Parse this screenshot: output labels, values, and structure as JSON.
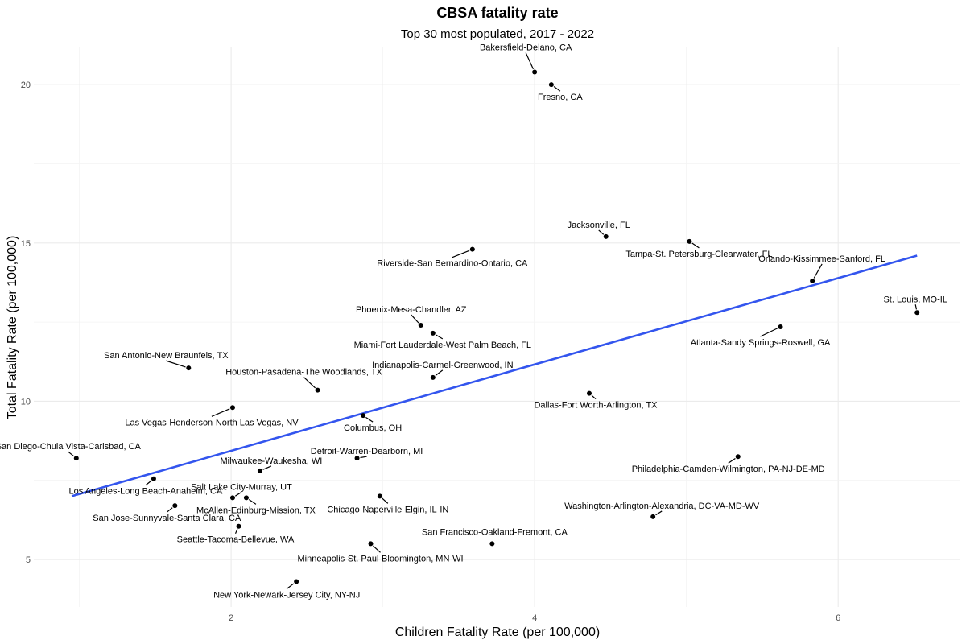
{
  "chart_data": {
    "type": "scatter",
    "title": "CBSA fatality rate",
    "subtitle": "Top 30 most populated, 2017 - 2022",
    "xlabel": "Children Fatality Rate (per 100,000)",
    "ylabel": "Total Fatality Rate (per 100,000)",
    "xlim": [
      0.7,
      6.8
    ],
    "ylim": [
      3.5,
      21.2
    ],
    "x_ticks": [
      2,
      4,
      6
    ],
    "y_ticks": [
      5,
      10,
      15,
      20
    ],
    "grid": true,
    "trend_line": {
      "color": "#3355ee",
      "x": [
        0.95,
        6.52
      ],
      "y": [
        7.0,
        14.6
      ]
    },
    "points": [
      {
        "name": "Bakersfield-Delano, CA",
        "x": 4.0,
        "y": 20.4
      },
      {
        "name": "Fresno, CA",
        "x": 4.11,
        "y": 20.0
      },
      {
        "name": "Jacksonville, FL",
        "x": 4.47,
        "y": 15.2
      },
      {
        "name": "Tampa-St. Petersburg-Clearwater, FL",
        "x": 5.02,
        "y": 15.05
      },
      {
        "name": "Riverside-San Bernardino-Ontario, CA",
        "x": 3.59,
        "y": 14.8
      },
      {
        "name": "Orlando-Kissimmee-Sanford, FL",
        "x": 5.83,
        "y": 13.8
      },
      {
        "name": "St. Louis, MO-IL",
        "x": 6.52,
        "y": 12.8
      },
      {
        "name": "Atlanta-Sandy Springs-Roswell, GA",
        "x": 5.62,
        "y": 12.35
      },
      {
        "name": "Phoenix-Mesa-Chandler, AZ",
        "x": 3.25,
        "y": 12.4
      },
      {
        "name": "Miami-Fort Lauderdale-West Palm Beach, FL",
        "x": 3.33,
        "y": 12.15
      },
      {
        "name": "San Antonio-New Braunfels, TX",
        "x": 1.72,
        "y": 11.05
      },
      {
        "name": "Indianapolis-Carmel-Greenwood, IN",
        "x": 3.33,
        "y": 10.75
      },
      {
        "name": "Houston-Pasadena-The Woodlands, TX",
        "x": 2.57,
        "y": 10.35
      },
      {
        "name": "Dallas-Fort Worth-Arlington, TX",
        "x": 4.36,
        "y": 10.25
      },
      {
        "name": "Las Vegas-Henderson-North Las Vegas, NV",
        "x": 2.01,
        "y": 9.8
      },
      {
        "name": "Columbus, OH",
        "x": 2.87,
        "y": 9.55
      },
      {
        "name": "San Diego-Chula Vista-Carlsbad, CA",
        "x": 0.98,
        "y": 8.2
      },
      {
        "name": "Detroit-Warren-Dearborn, MI",
        "x": 2.83,
        "y": 8.2
      },
      {
        "name": "Philadelphia-Camden-Wilmington, PA-NJ-DE-MD",
        "x": 5.34,
        "y": 8.25
      },
      {
        "name": "Milwaukee-Waukesha, WI",
        "x": 2.19,
        "y": 7.8
      },
      {
        "name": "Los Angeles-Long Beach-Anaheim, CA",
        "x": 1.49,
        "y": 7.55
      },
      {
        "name": "Salt Lake City-Murray, UT",
        "x": 2.01,
        "y": 6.95
      },
      {
        "name": "McAllen-Edinburg-Mission, TX",
        "x": 2.1,
        "y": 6.95
      },
      {
        "name": "Chicago-Naperville-Elgin, IL-IN",
        "x": 2.98,
        "y": 7.0
      },
      {
        "name": "San Jose-Sunnyvale-Santa Clara, CA",
        "x": 1.63,
        "y": 6.7
      },
      {
        "name": "Washington-Arlington-Alexandria, DC-VA-MD-WV",
        "x": 4.78,
        "y": 6.35
      },
      {
        "name": "Seattle-Tacoma-Bellevue, WA",
        "x": 2.05,
        "y": 6.05
      },
      {
        "name": "San Francisco-Oakland-Fremont, CA",
        "x": 3.72,
        "y": 5.5
      },
      {
        "name": "Minneapolis-St. Paul-Bloomington, MN-WI",
        "x": 2.92,
        "y": 5.5
      },
      {
        "name": "New York-Newark-Jersey City, NY-NJ",
        "x": 2.43,
        "y": 4.3
      }
    ]
  }
}
